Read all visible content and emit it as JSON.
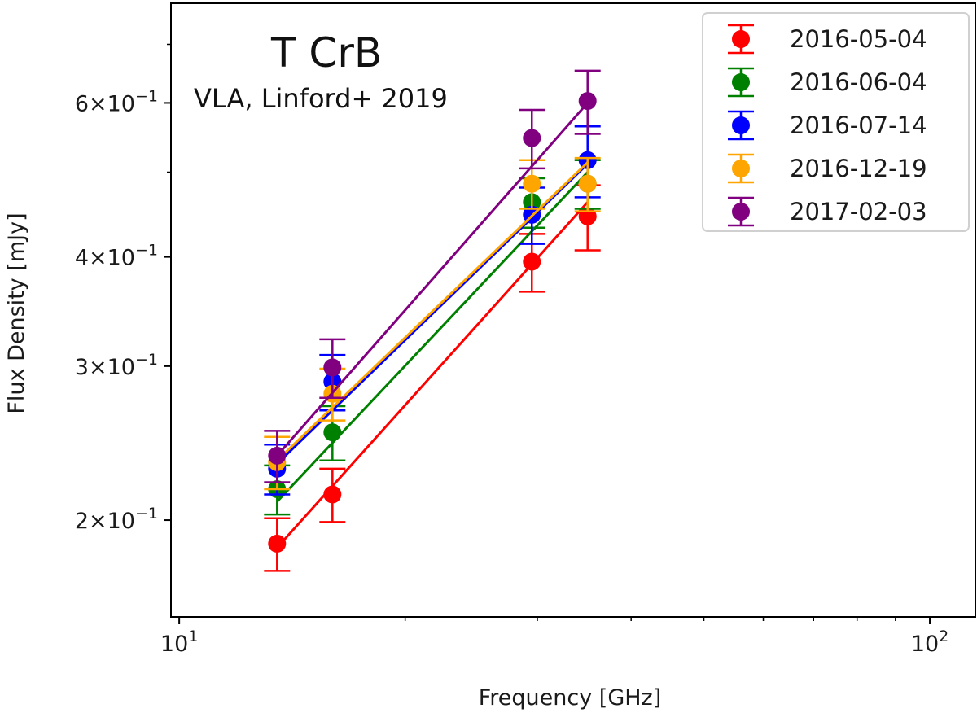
{
  "chart_data": {
    "type": "scatter",
    "title": "T CrB",
    "subtitle": "VLA, Linford+ 2019",
    "xlabel": "Frequency [GHz]",
    "ylabel": "Flux Density [mJy]",
    "xscale": "log",
    "yscale": "log",
    "xlim": [
      9.75,
      115
    ],
    "ylim": [
      0.155,
      0.78
    ],
    "legend_position": "top-right",
    "x_ticks": [
      {
        "value": 10,
        "base": "10",
        "exp": "1"
      },
      {
        "value": 100,
        "base": "10",
        "exp": "2"
      }
    ],
    "y_ticks": [
      {
        "value": 0.2,
        "mant": "2",
        "exp": "−1"
      },
      {
        "value": 0.3,
        "mant": "3",
        "exp": "−1"
      },
      {
        "value": 0.4,
        "mant": "4",
        "exp": "−1"
      },
      {
        "value": 0.6,
        "mant": "6",
        "exp": "−1"
      }
    ],
    "series": [
      {
        "name": "2016-05-04",
        "color": "#ff0000",
        "points": [
          {
            "x": 13.5,
            "y": 0.188,
            "err": 0.013
          },
          {
            "x": 16.0,
            "y": 0.214,
            "err": 0.015
          },
          {
            "x": 29.5,
            "y": 0.395,
            "err": 0.03
          },
          {
            "x": 35.0,
            "y": 0.445,
            "err": 0.038
          }
        ],
        "fit": [
          [
            13.5,
            0.186
          ],
          [
            35.0,
            0.462
          ]
        ]
      },
      {
        "name": "2016-06-04",
        "color": "#008000",
        "points": [
          {
            "x": 13.5,
            "y": 0.217,
            "err": 0.014
          },
          {
            "x": 16.0,
            "y": 0.252,
            "err": 0.018
          },
          {
            "x": 29.5,
            "y": 0.462,
            "err": 0.03
          },
          {
            "x": 35.0,
            "y": 0.485,
            "err": 0.031
          }
        ],
        "fit": [
          [
            13.5,
            0.21
          ],
          [
            35.0,
            0.5
          ]
        ]
      },
      {
        "name": "2016-07-14",
        "color": "#0000ff",
        "points": [
          {
            "x": 13.5,
            "y": 0.229,
            "err": 0.015
          },
          {
            "x": 16.0,
            "y": 0.288,
            "err": 0.021
          },
          {
            "x": 29.5,
            "y": 0.447,
            "err": 0.033
          },
          {
            "x": 35.0,
            "y": 0.516,
            "err": 0.048
          }
        ],
        "fit": [
          [
            13.5,
            0.232
          ],
          [
            35.0,
            0.511
          ]
        ]
      },
      {
        "name": "2016-12-19",
        "color": "#ffa500",
        "points": [
          {
            "x": 13.5,
            "y": 0.233,
            "err": 0.016
          },
          {
            "x": 16.0,
            "y": 0.279,
            "err": 0.019
          },
          {
            "x": 29.5,
            "y": 0.485,
            "err": 0.031
          },
          {
            "x": 35.0,
            "y": 0.485,
            "err": 0.034
          }
        ],
        "fit": [
          [
            13.5,
            0.234
          ],
          [
            35.0,
            0.513
          ]
        ]
      },
      {
        "name": "2017-02-03",
        "color": "#800080",
        "points": [
          {
            "x": 13.5,
            "y": 0.237,
            "err": 0.016
          },
          {
            "x": 16.0,
            "y": 0.299,
            "err": 0.023
          },
          {
            "x": 29.5,
            "y": 0.547,
            "err": 0.042
          },
          {
            "x": 35.0,
            "y": 0.603,
            "err": 0.05
          }
        ],
        "fit": [
          [
            13.5,
            0.237
          ],
          [
            35.0,
            0.6
          ]
        ]
      }
    ]
  }
}
